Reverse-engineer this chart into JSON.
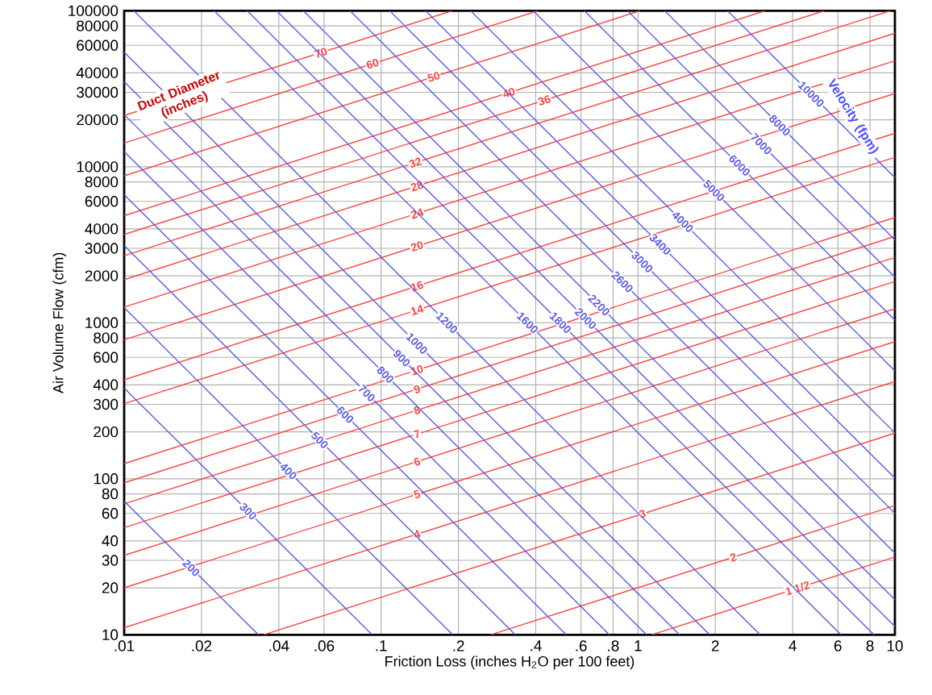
{
  "chart_data": {
    "type": "line",
    "log": "xy",
    "grid": true,
    "xlabel": "Friction Loss (inches H$_{2}$O per 100 feet)",
    "ylabel": "Air Volume Flow (cfm)",
    "annotations": [
      "Duct Diameter (inches)",
      "Velocity (fpm)"
    ],
    "xlim": [
      0.01,
      10
    ],
    "ylim": [
      10,
      100000
    ],
    "xticks": [
      {
        "value": 0.01,
        "label": ".01"
      },
      {
        "value": 0.02,
        "label": ".02"
      },
      {
        "value": 0.04,
        "label": ".04"
      },
      {
        "value": 0.06,
        "label": ".06"
      },
      {
        "value": 0.1,
        "label": ".1"
      },
      {
        "value": 0.2,
        "label": ".2"
      },
      {
        "value": 0.4,
        "label": ".4"
      },
      {
        "value": 0.6,
        "label": ".6"
      },
      {
        "value": 0.8,
        "label": ".8"
      },
      1,
      2,
      4,
      6,
      8,
      10
    ],
    "yticks": [
      10,
      20,
      30,
      40,
      60,
      80,
      100,
      200,
      300,
      400,
      600,
      800,
      1000,
      2000,
      3000,
      4000,
      6000,
      8000,
      10000,
      20000,
      30000,
      40000,
      60000,
      80000,
      100000
    ],
    "series": [
      {
        "name": "70",
        "color": "#ff4040",
        "x": [
          0.01,
          0.189
        ],
        "values": [
          21300,
          100000
        ]
      },
      {
        "name": "60",
        "color": "#ff4040",
        "x": [
          0.01,
          0.409
        ],
        "values": [
          14200,
          100000
        ]
      },
      {
        "name": "50",
        "color": "#ff4040",
        "x": [
          0.01,
          1.02
        ],
        "values": [
          8760,
          100000
        ]
      },
      {
        "name": "40",
        "color": "#ff4040",
        "x": [
          0.01,
          3.13
        ],
        "values": [
          4860,
          100000
        ]
      },
      {
        "name": "36",
        "color": "#ff4040",
        "x": [
          0.01,
          5.32
        ],
        "values": [
          3680,
          100000
        ]
      },
      {
        "name": "32",
        "color": "#ff4040",
        "x": [
          0.01,
          9.61
        ],
        "values": [
          2690,
          100000
        ]
      },
      {
        "name": "28",
        "color": "#ff4040",
        "x": [
          0.01,
          10
        ],
        "values": [
          1890,
          71800
        ]
      },
      {
        "name": "24",
        "color": "#ff4040",
        "x": [
          0.01,
          10
        ],
        "values": [
          1260,
          47800
        ]
      },
      {
        "name": "20",
        "color": "#ff4040",
        "x": [
          0.01,
          10
        ],
        "values": [
          778,
          29500
        ]
      },
      {
        "name": "16",
        "color": "#ff4040",
        "x": [
          0.01,
          10
        ],
        "values": [
          431,
          16400
        ]
      },
      {
        "name": "14",
        "color": "#ff4040",
        "x": [
          0.01,
          10
        ],
        "values": [
          303,
          11500
        ]
      },
      {
        "name": "10",
        "color": "#ff4040",
        "x": [
          0.01,
          10
        ],
        "values": [
          125,
          4730
        ]
      },
      {
        "name": "9",
        "color": "#ff4040",
        "x": [
          0.01,
          10
        ],
        "values": [
          94.3,
          3580
        ]
      },
      {
        "name": "8",
        "color": "#ff4040",
        "x": [
          0.01,
          10
        ],
        "values": [
          69.1,
          2620
        ]
      },
      {
        "name": "7",
        "color": "#ff4040",
        "x": [
          0.01,
          10
        ],
        "values": [
          48.6,
          1840
        ]
      },
      {
        "name": "6",
        "color": "#ff4040",
        "x": [
          0.01,
          10
        ],
        "values": [
          32.3,
          1230
        ]
      },
      {
        "name": "5",
        "color": "#ff4040",
        "x": [
          0.01,
          10
        ],
        "values": [
          20.0,
          757
        ]
      },
      {
        "name": "4",
        "color": "#ff4040",
        "x": [
          0.01,
          10
        ],
        "values": [
          11.1,
          420
        ]
      },
      {
        "name": "3",
        "color": "#ff4040",
        "x": [
          0.0349,
          10
        ],
        "values": [
          10,
          196
        ]
      },
      {
        "name": "2",
        "color": "#ff4040",
        "x": [
          0.267,
          10
        ],
        "values": [
          10,
          67.3
        ]
      },
      {
        "name": "1 1/2",
        "color": "#ff4040",
        "x": [
          1.13,
          10
        ],
        "values": [
          10,
          31.5
        ]
      },
      {
        "name": "200",
        "color": "#5a5ae6",
        "x": [
          0.01,
          0.0333
        ],
        "values": [
          72,
          10
        ]
      },
      {
        "name": "300",
        "color": "#5a5ae6",
        "x": [
          0.01,
          0.0923
        ],
        "values": [
          382,
          10
        ]
      },
      {
        "name": "400",
        "color": "#5a5ae6",
        "x": [
          0.01,
          0.19
        ],
        "values": [
          1250,
          10
        ]
      },
      {
        "name": "500",
        "color": "#5a5ae6",
        "x": [
          0.01,
          0.333
        ],
        "values": [
          3130,
          10
        ]
      },
      {
        "name": "600",
        "color": "#5a5ae6",
        "x": [
          0.01,
          0.526
        ],
        "values": [
          6620,
          10
        ]
      },
      {
        "name": "700",
        "color": "#5a5ae6",
        "x": [
          0.01,
          0.774
        ],
        "values": [
          12500,
          10
        ]
      },
      {
        "name": "800",
        "color": "#5a5ae6",
        "x": [
          0.01,
          1.08
        ],
        "values": [
          21600,
          10
        ]
      },
      {
        "name": "900",
        "color": "#5a5ae6",
        "x": [
          0.01,
          1.45
        ],
        "values": [
          35100,
          10
        ]
      },
      {
        "name": "1000",
        "color": "#5a5ae6",
        "x": [
          0.01,
          1.9
        ],
        "values": [
          54200,
          10
        ]
      },
      {
        "name": "1200",
        "color": "#5a5ae6",
        "x": [
          0.0109,
          2.99
        ],
        "values": [
          100000,
          10
        ]
      },
      {
        "name": "1600",
        "color": "#5a5ae6",
        "x": [
          0.0224,
          6.17
        ],
        "values": [
          100000,
          10
        ]
      },
      {
        "name": "1800",
        "color": "#5a5ae6",
        "x": [
          0.0301,
          8.29
        ],
        "values": [
          100000,
          10
        ]
      },
      {
        "name": "2000",
        "color": "#5a5ae6",
        "x": [
          0.0392,
          10
        ],
        "values": [
          100000,
          11.3
        ]
      },
      {
        "name": "2200",
        "color": "#5a5ae6",
        "x": [
          0.0498,
          10
        ],
        "values": [
          100000,
          16.8
        ]
      },
      {
        "name": "2600",
        "color": "#5a5ae6",
        "x": [
          0.0757,
          10
        ],
        "values": [
          100000,
          33.4
        ]
      },
      {
        "name": "3000",
        "color": "#5a5ae6",
        "x": [
          0.108,
          10
        ],
        "values": [
          100000,
          60.1
        ]
      },
      {
        "name": "3400",
        "color": "#5a5ae6",
        "x": [
          0.149,
          10
        ],
        "values": [
          100000,
          101
        ]
      },
      {
        "name": "4000",
        "color": "#5a5ae6",
        "x": [
          0.223,
          10
        ],
        "values": [
          100000,
          197
        ]
      },
      {
        "name": "5000",
        "color": "#5a5ae6",
        "x": [
          0.391,
          10
        ],
        "values": [
          100000,
          492
        ]
      },
      {
        "name": "6000",
        "color": "#5a5ae6",
        "x": [
          0.618,
          10
        ],
        "values": [
          100000,
          1040
        ]
      },
      {
        "name": "7000",
        "color": "#5a5ae6",
        "x": [
          0.91,
          10
        ],
        "values": [
          100000,
          1960
        ]
      },
      {
        "name": "8000",
        "color": "#5a5ae6",
        "x": [
          1.27,
          10
        ],
        "values": [
          100000,
          3400
        ]
      },
      {
        "name": "10000",
        "color": "#5a5ae6",
        "x": [
          2.23,
          10
        ],
        "values": [
          100000,
          8520
        ]
      }
    ]
  }
}
